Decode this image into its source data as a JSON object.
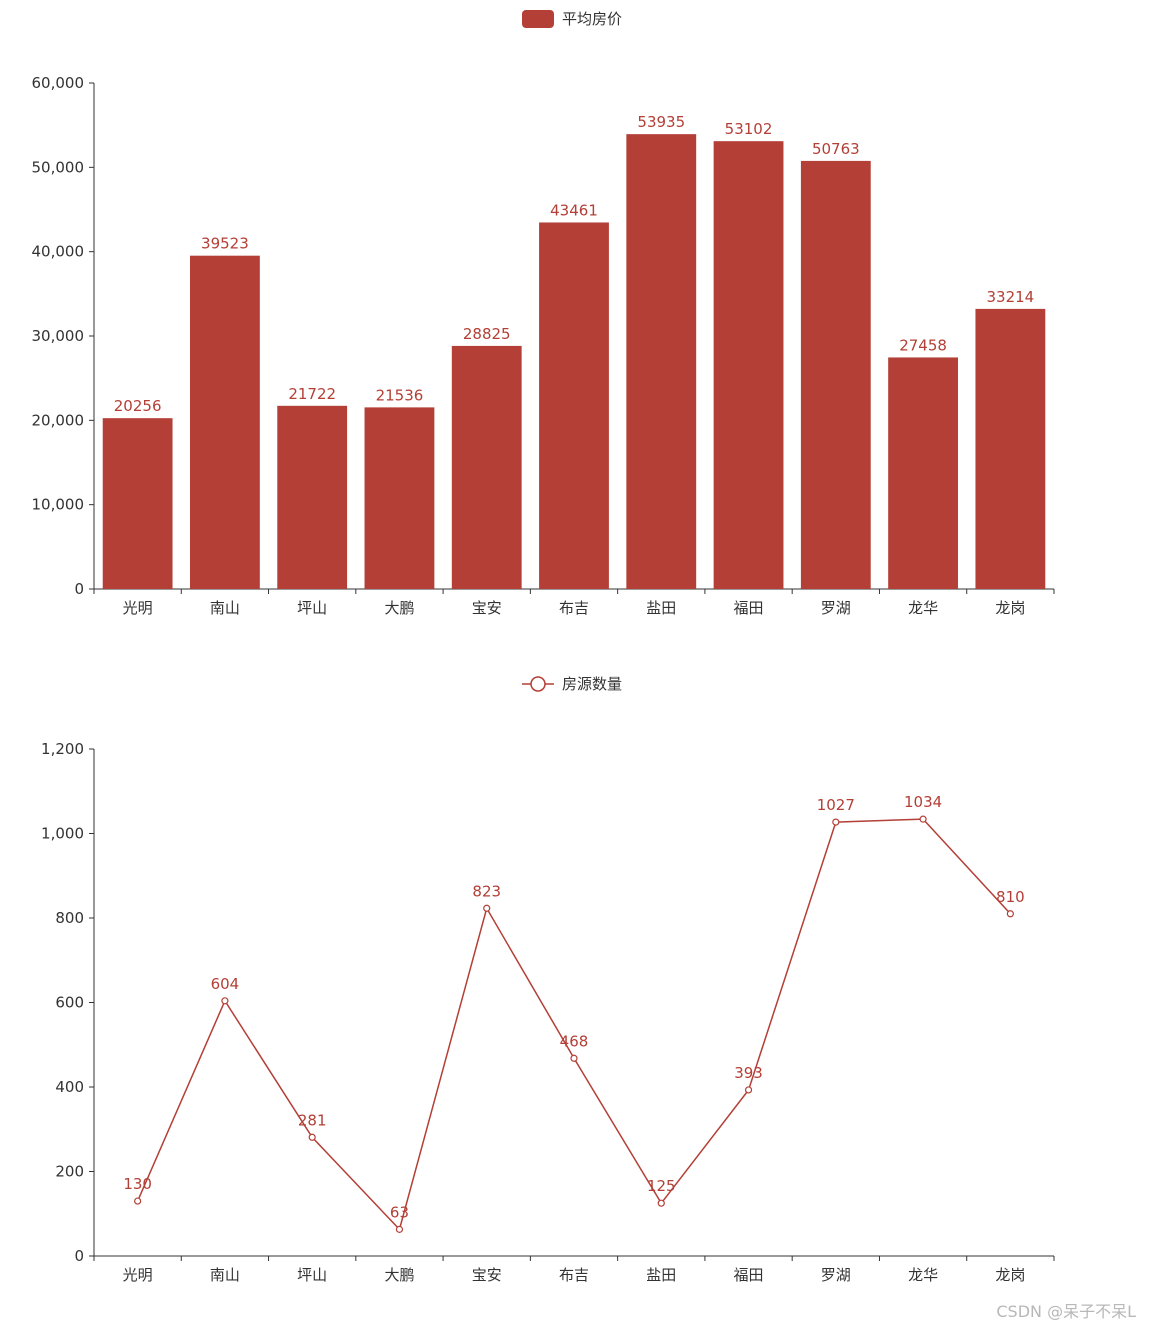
{
  "chart_data": [
    {
      "type": "bar",
      "legend": "平均房价",
      "color": "#b33f36",
      "categories": [
        "光明",
        "南山",
        "坪山",
        "大鹏",
        "宝安",
        "布吉",
        "盐田",
        "福田",
        "罗湖",
        "龙华",
        "龙岗"
      ],
      "series": [
        {
          "name": "平均房价",
          "values": [
            20256,
            39523,
            21722,
            21536,
            28825,
            43461,
            53935,
            53102,
            50763,
            27458,
            33214
          ]
        }
      ],
      "ylim": [
        0,
        60000
      ],
      "yticks": [
        "0",
        "10,000",
        "20,000",
        "30,000",
        "40,000",
        "50,000",
        "60,000"
      ],
      "legend_position": "top-center",
      "grid": false
    },
    {
      "type": "line",
      "legend": "房源数量",
      "color": "#b33f36",
      "categories": [
        "光明",
        "南山",
        "坪山",
        "大鹏",
        "宝安",
        "布吉",
        "盐田",
        "福田",
        "罗湖",
        "龙华",
        "龙岗"
      ],
      "series": [
        {
          "name": "房源数量",
          "values": [
            130,
            604,
            281,
            63,
            823,
            468,
            125,
            393,
            1027,
            1034,
            810
          ]
        }
      ],
      "ylim": [
        0,
        1200
      ],
      "yticks": [
        "0",
        "200",
        "400",
        "600",
        "800",
        "1,000",
        "1,200"
      ],
      "legend_position": "top-center",
      "grid": false
    }
  ],
  "watermark": "CSDN @呆子不呆L"
}
